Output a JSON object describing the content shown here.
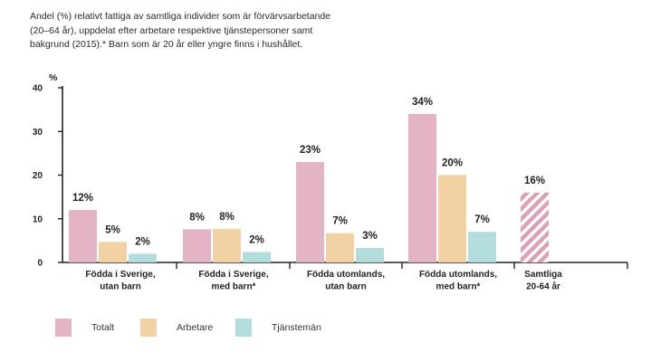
{
  "subtitle_lines": [
    "Andel (%) relativt fattiga av samtliga individer som är förvärvsarbetande",
    "(20–64 år), uppdelat efter arbetare respektive tjänstepersoner samt",
    "bakgrund (2015).* Barn som är 20 år eller yngre finns i hushållet."
  ],
  "colors": {
    "totalt": "#e2b4c6",
    "arbetare": "#f2d2a5",
    "tjanstemen": "#b3dcdc",
    "axis": "#222222"
  },
  "chart_data": {
    "type": "bar",
    "ylabel": "%",
    "ylim": [
      0,
      40
    ],
    "yticks": [
      0,
      10,
      20,
      30,
      40
    ],
    "grid": false,
    "legend_position": "bottom-left",
    "categories": [
      [
        "Födda i Sverige,",
        "utan barn"
      ],
      [
        "Födda i Sverige,",
        "med barn*"
      ],
      [
        "Födda utomlands,",
        "utan barn"
      ],
      [
        "Födda utomlands,",
        "med barn*"
      ],
      [
        "Samtliga",
        "20-64 år"
      ]
    ],
    "series": [
      {
        "name": "Totalt",
        "color_key": "totalt",
        "values": [
          12,
          7.6,
          23,
          34,
          16
        ],
        "labels": [
          "12%",
          "8%",
          "23%",
          "34%",
          "16%"
        ]
      },
      {
        "name": "Arbetare",
        "color_key": "arbetare",
        "values": [
          4.7,
          7.7,
          6.7,
          20,
          null
        ],
        "labels": [
          "5%",
          "8%",
          "7%",
          "20%",
          null
        ]
      },
      {
        "name": "Tjänstemän",
        "color_key": "tjanstemen",
        "values": [
          2,
          2.4,
          3.3,
          7,
          null
        ],
        "labels": [
          "2%",
          "2%",
          "3%",
          "7%",
          null
        ]
      }
    ],
    "hatched_category": 4
  }
}
